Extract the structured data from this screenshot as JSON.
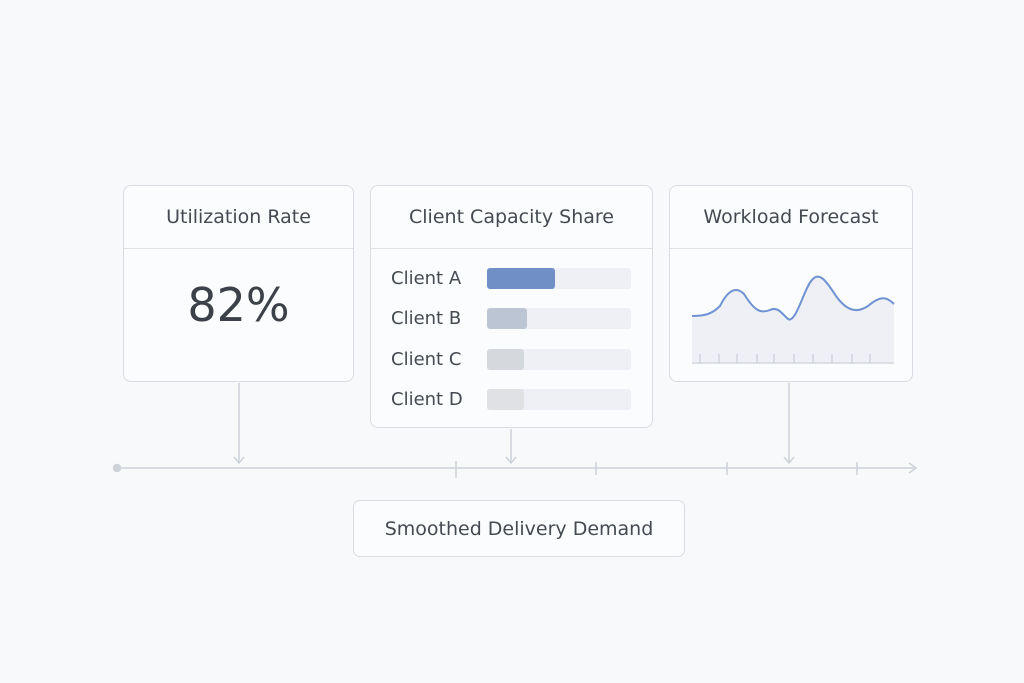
{
  "utilization": {
    "title": "Utilization Rate",
    "value": "82%"
  },
  "capacity_share": {
    "title": "Client Capacity Share",
    "clients": [
      {
        "label": "Client A",
        "share": 0.47,
        "color": "#6f8fc6"
      },
      {
        "label": "Client B",
        "share": 0.28,
        "color": "#bcc5d4"
      },
      {
        "label": "Client C",
        "share": 0.26,
        "color": "#d5d8dd"
      },
      {
        "label": "Client D",
        "share": 0.26,
        "color": "#dfe1e5"
      }
    ]
  },
  "forecast": {
    "title": "Workload Forecast",
    "line_color": "#6f93d2"
  },
  "timeline": {
    "label": "Smoothed Delivery Demand"
  }
}
